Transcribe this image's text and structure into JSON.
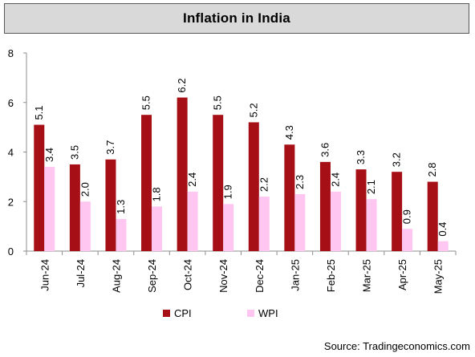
{
  "title": "Inflation in India",
  "source": "Source: Tradingeconomics.com",
  "colors": {
    "cpi": "#a50f15",
    "wpi": "#ffc6f2",
    "axis": "#8c8c8c",
    "title_bg": "#d9d9d9"
  },
  "chart_data": {
    "type": "bar",
    "title": "Inflation in India",
    "xlabel": "",
    "ylabel": "",
    "ylim": [
      0,
      8
    ],
    "yticks": [
      0,
      2,
      4,
      6,
      8
    ],
    "grid": false,
    "legend_position": "bottom",
    "categories": [
      "Jun-24",
      "Jul-24",
      "Aug-24",
      "Sep-24",
      "Oct-24",
      "Nov-24",
      "Dec-24",
      "Jan-25",
      "Feb-25",
      "Mar-25",
      "Apr-25",
      "May-25"
    ],
    "series": [
      {
        "name": "CPI",
        "values": [
          5.1,
          3.5,
          3.7,
          5.5,
          6.2,
          5.5,
          5.2,
          4.3,
          3.6,
          3.3,
          3.2,
          2.8
        ],
        "labels": [
          "5.1",
          "3.5",
          "3.7",
          "5.5",
          "6.2",
          "5.5",
          "5.2",
          "4.3",
          "3.6",
          "3.3",
          "3.2",
          "2.8"
        ]
      },
      {
        "name": "WPI",
        "values": [
          3.4,
          2.0,
          1.3,
          1.8,
          2.4,
          1.9,
          2.2,
          2.3,
          2.4,
          2.1,
          0.9,
          0.4
        ],
        "labels": [
          "3.4",
          "2.0",
          "1.3",
          "1.8",
          "2.4",
          "1.9",
          "2.2",
          "2.3",
          "2.4",
          "2.1",
          "0.9",
          "0.4"
        ]
      }
    ]
  }
}
